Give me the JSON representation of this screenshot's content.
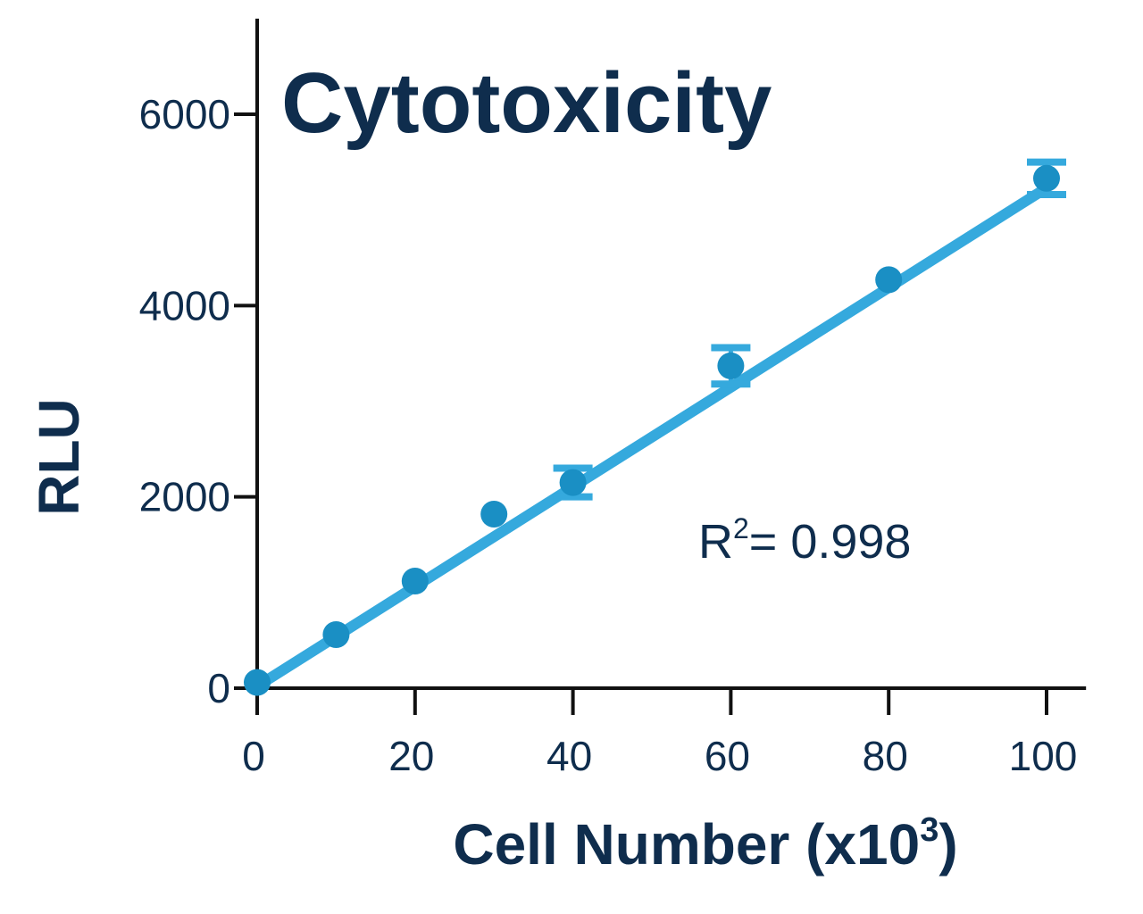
{
  "chart_data": {
    "type": "scatter",
    "title": "Cytotoxicity",
    "xlabel": "Cell Number (x10",
    "xlabel_sup": "3",
    "xlabel_end": ")",
    "ylabel": "RLU",
    "xlim": [
      0,
      105
    ],
    "ylim": [
      0,
      7000
    ],
    "xticks": [
      0,
      20,
      40,
      60,
      80,
      100
    ],
    "yticks": [
      0,
      2000,
      4000,
      6000
    ],
    "grid": false,
    "series": [
      {
        "points": [
          {
            "x": 0,
            "y": 60,
            "err": 0
          },
          {
            "x": 10,
            "y": 560,
            "err": 0
          },
          {
            "x": 20,
            "y": 1120,
            "err": 0
          },
          {
            "x": 30,
            "y": 1820,
            "err": 0
          },
          {
            "x": 40,
            "y": 2150,
            "err": 150
          },
          {
            "x": 60,
            "y": 3370,
            "err": 190
          },
          {
            "x": 80,
            "y": 4270,
            "err": 0
          },
          {
            "x": 100,
            "y": 5330,
            "err": 170
          }
        ]
      }
    ],
    "fit_line": {
      "x0": 0,
      "y0": 20,
      "x1": 100,
      "y1": 5230
    },
    "annotation": {
      "label_main": "R",
      "label_sup": "2",
      "label_rest": "= 0.998"
    },
    "colors": {
      "points": "#1a8fc4",
      "fit": "#35a9dd",
      "axis": "#111111",
      "text": "#0f2d4d"
    }
  }
}
